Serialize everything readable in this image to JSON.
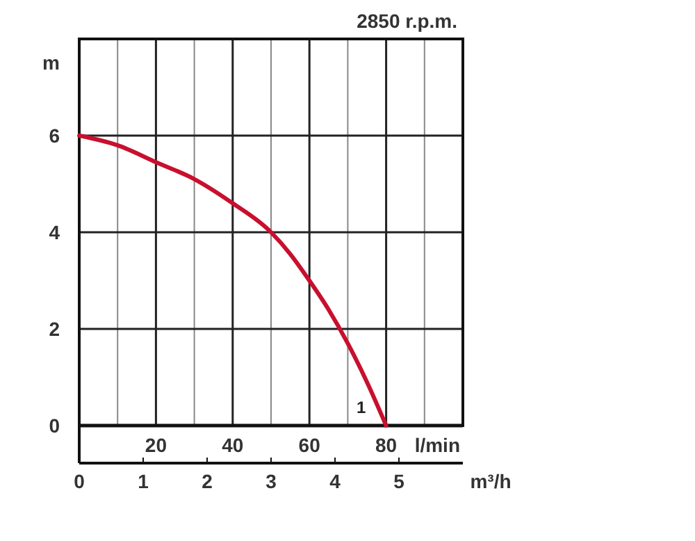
{
  "chart_data": {
    "type": "line",
    "title": "2850 r.p.m.",
    "ylabel": "m",
    "xlabel": "m³/h",
    "x2label": "l/min",
    "x": [
      0,
      0.6,
      1.2,
      1.8,
      2.4,
      3.0,
      3.3,
      3.6,
      3.9,
      4.2,
      4.5,
      4.8
    ],
    "series": [
      {
        "color": "#c8102e",
        "values": [
          6,
          5.8,
          5.45,
          5.1,
          4.6,
          4.0,
          3.55,
          3.0,
          2.4,
          1.7,
          0.9,
          0
        ]
      }
    ],
    "xlim": [
      0,
      6
    ],
    "xticks": [
      0,
      1,
      2,
      3,
      4,
      5
    ],
    "x2lim": [
      0,
      100
    ],
    "x2ticks": [
      {
        "value": 10,
        "label": null
      },
      20,
      {
        "value": 30,
        "label": null
      },
      40,
      {
        "value": 50,
        "label": null
      },
      60,
      {
        "value": 70,
        "label": null
      },
      80,
      {
        "value": 90,
        "label": null
      }
    ],
    "ylim": [
      0,
      8
    ],
    "yticks": [
      0,
      2,
      4,
      6
    ],
    "grid": true,
    "marker": "none",
    "line_style": "solid",
    "annotations": [
      "1"
    ]
  }
}
